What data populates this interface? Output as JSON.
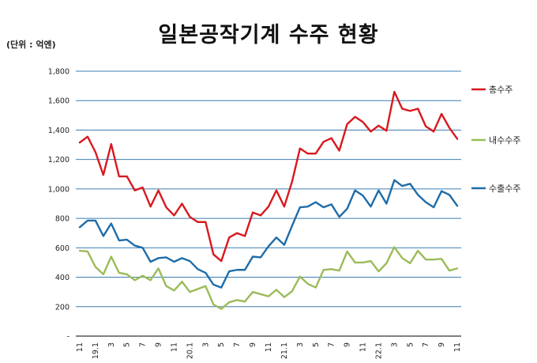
{
  "chart_data": {
    "type": "line",
    "title": "일본공작기계 수주 현황",
    "unit_label": "(단위 : 억엔)",
    "ylim": [
      0,
      1800
    ],
    "y_ticks": [
      "-",
      "200",
      "400",
      "600",
      "800",
      "1,000",
      "1,200",
      "1,400",
      "1,600",
      "1,800"
    ],
    "y_tick_values": [
      0,
      200,
      400,
      600,
      800,
      1000,
      1200,
      1400,
      1600,
      1800
    ],
    "x_tick_labels": [
      "11",
      "19.1",
      "3",
      "5",
      "7",
      "9",
      "11",
      "20.1",
      "3",
      "5",
      "7",
      "9",
      "11",
      "21.1",
      "3",
      "5",
      "7",
      "9",
      "11",
      "22.1",
      "3",
      "5",
      "7",
      "9",
      "11"
    ],
    "x": [
      "2018-11",
      "2018-12",
      "2019-01",
      "2019-02",
      "2019-03",
      "2019-04",
      "2019-05",
      "2019-06",
      "2019-07",
      "2019-08",
      "2019-09",
      "2019-10",
      "2019-11",
      "2019-12",
      "2020-01",
      "2020-02",
      "2020-03",
      "2020-04",
      "2020-05",
      "2020-06",
      "2020-07",
      "2020-08",
      "2020-09",
      "2020-10",
      "2020-11",
      "2020-12",
      "2021-01",
      "2021-02",
      "2021-03",
      "2021-04",
      "2021-05",
      "2021-06",
      "2021-07",
      "2021-08",
      "2021-09",
      "2021-10",
      "2021-11",
      "2021-12",
      "2022-01",
      "2022-02",
      "2022-03",
      "2022-04",
      "2022-05",
      "2022-06",
      "2022-07",
      "2022-08",
      "2022-09",
      "2022-10",
      "2022-11"
    ],
    "grid": true,
    "legend_position": "right",
    "series": [
      {
        "name": "총수주",
        "color": "#d8191f",
        "values": [
          1315,
          1355,
          1250,
          1095,
          1305,
          1085,
          1085,
          990,
          1010,
          880,
          990,
          875,
          820,
          900,
          810,
          775,
          775,
          555,
          510,
          670,
          700,
          680,
          840,
          820,
          880,
          990,
          880,
          1050,
          1275,
          1240,
          1240,
          1320,
          1345,
          1260,
          1440,
          1490,
          1455,
          1390,
          1430,
          1395,
          1660,
          1545,
          1530,
          1545,
          1425,
          1390,
          1510,
          1415,
          1340
        ]
      },
      {
        "name": "내수수주",
        "color": "#9bbb59",
        "values": [
          580,
          575,
          470,
          420,
          540,
          430,
          420,
          380,
          410,
          380,
          460,
          340,
          310,
          370,
          300,
          320,
          340,
          215,
          185,
          230,
          245,
          235,
          300,
          285,
          270,
          315,
          265,
          305,
          405,
          355,
          330,
          450,
          455,
          445,
          575,
          500,
          500,
          510,
          440,
          495,
          605,
          530,
          495,
          580,
          520,
          520,
          525,
          445,
          460
        ]
      },
      {
        "name": "수출수주",
        "color": "#1f6ca8",
        "values": [
          740,
          785,
          785,
          680,
          765,
          650,
          655,
          615,
          600,
          505,
          530,
          535,
          505,
          530,
          510,
          455,
          430,
          350,
          330,
          440,
          450,
          450,
          540,
          535,
          610,
          670,
          620,
          750,
          875,
          880,
          910,
          875,
          895,
          810,
          865,
          990,
          955,
          880,
          990,
          900,
          1060,
          1020,
          1035,
          960,
          910,
          875,
          985,
          960,
          885
        ]
      }
    ]
  }
}
